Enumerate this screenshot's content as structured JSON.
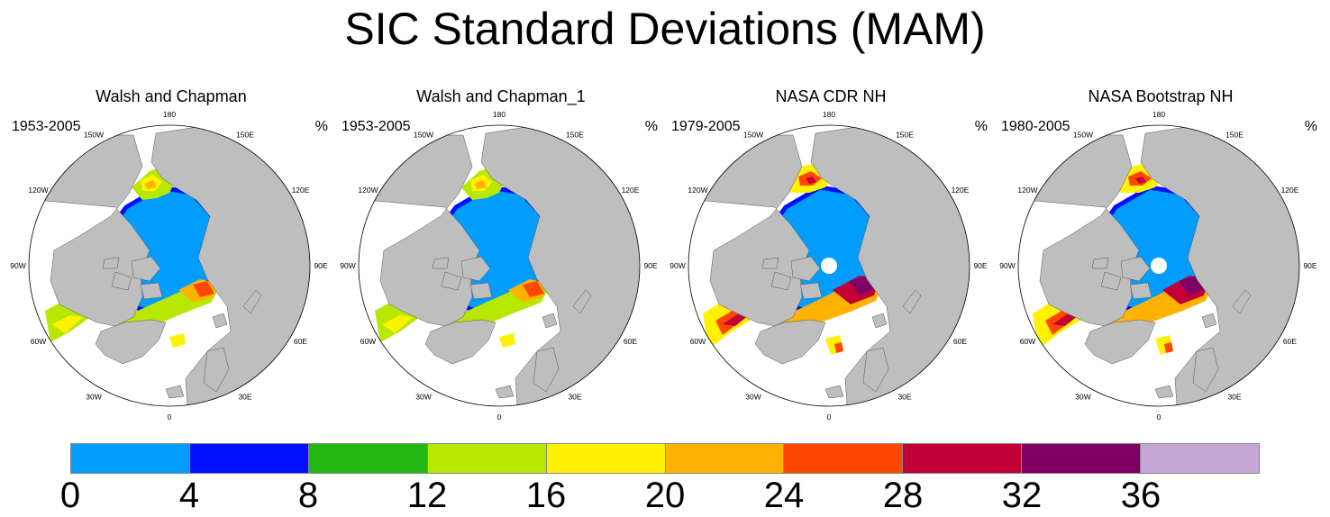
{
  "figure": {
    "title": "SIC Standard Deviations (MAM)"
  },
  "panels": [
    {
      "title": "Walsh and Chapman",
      "period": "1953-2005",
      "unit": "%",
      "style": "wc"
    },
    {
      "title": "Walsh and Chapman_1",
      "period": "1953-2005",
      "unit": "%",
      "style": "wc"
    },
    {
      "title": "NASA CDR NH",
      "period": "1979-2005",
      "unit": "%",
      "style": "nasa"
    },
    {
      "title": "NASA Bootstrap NH",
      "period": "1980-2005",
      "unit": "%",
      "style": "nasa"
    }
  ],
  "longitude_labels": [
    "180",
    "150E",
    "120E",
    "90E",
    "60E",
    "30E",
    "0",
    "30W",
    "60W",
    "90W",
    "120W",
    "150W"
  ],
  "colors": {
    "land": "#bebebe",
    "ocean": "#ffffff",
    "hole": "#ffffff"
  },
  "colorbar": {
    "colors": [
      "#009dff",
      "#0011ff",
      "#22b811",
      "#b6e800",
      "#fff200",
      "#ffb300",
      "#ff4700",
      "#c20035",
      "#800066",
      "#c5a8d6"
    ],
    "tick_labels": [
      "0",
      "4",
      "8",
      "12",
      "16",
      "20",
      "24",
      "28",
      "32",
      "36"
    ],
    "boundaries": [
      0,
      4,
      8,
      12,
      16,
      20,
      24,
      28,
      32,
      36,
      40
    ]
  }
}
